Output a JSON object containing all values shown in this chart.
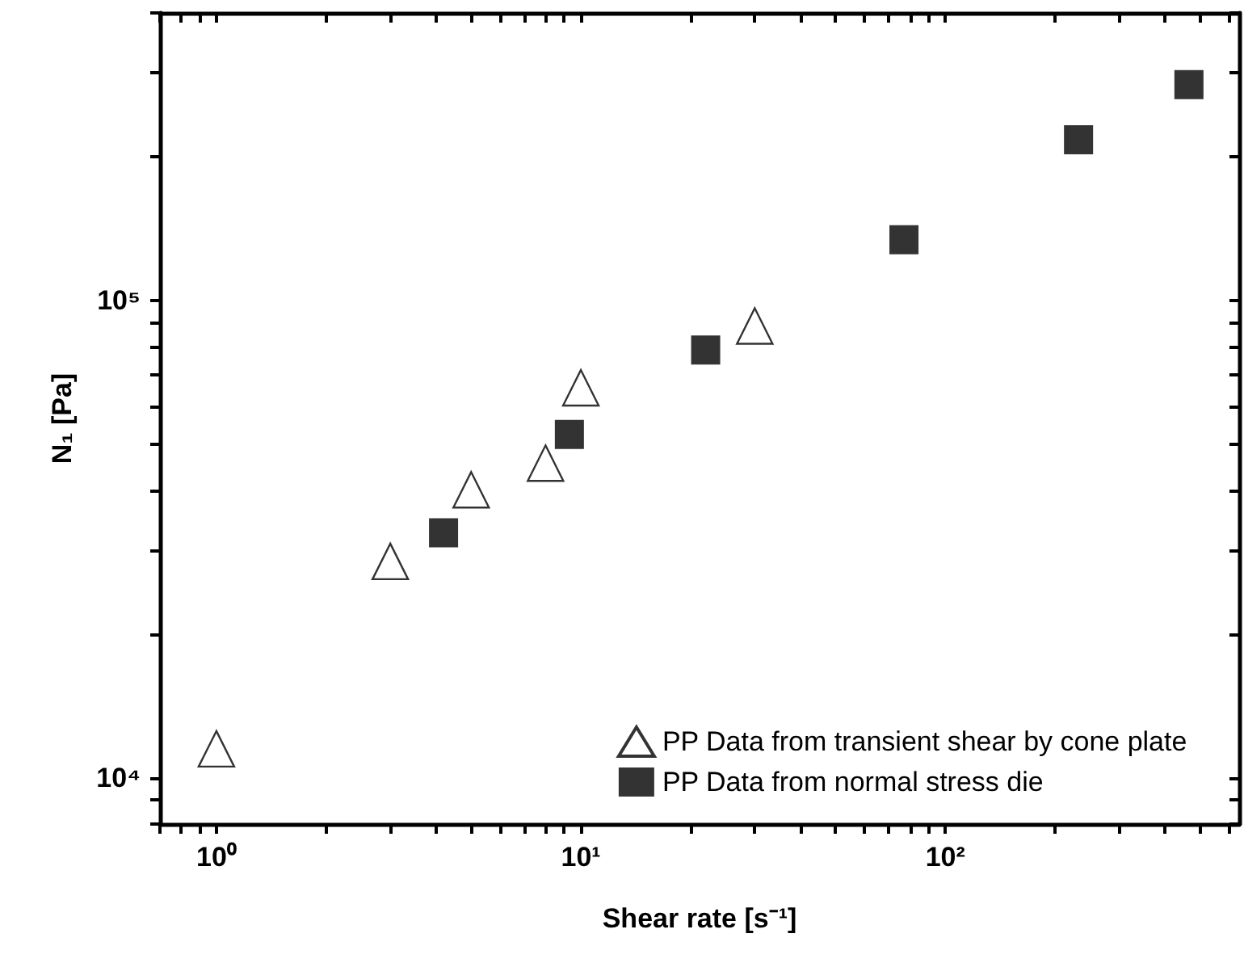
{
  "chart_data": {
    "type": "scatter",
    "xlabel": "Shear rate [s⁻¹]",
    "ylabel": "N₁ [Pa]",
    "log": "xy",
    "grid": false,
    "legend": "bottom right",
    "xlim": [
      0.7,
      640
    ],
    "ylim": [
      8000,
      400000
    ],
    "xticks": [
      {
        "value": 0.7,
        "label": null
      },
      {
        "value": 0.8,
        "label": null
      },
      {
        "value": 0.9,
        "label": null
      },
      {
        "value": 1,
        "label": "10⁰"
      },
      {
        "value": 2,
        "label": null
      },
      {
        "value": 3,
        "label": null
      },
      {
        "value": 4,
        "label": null
      },
      {
        "value": 5,
        "label": null
      },
      {
        "value": 6,
        "label": null
      },
      {
        "value": 7,
        "label": null
      },
      {
        "value": 8,
        "label": null
      },
      {
        "value": 9,
        "label": null
      },
      {
        "value": 10,
        "label": "10¹"
      },
      {
        "value": 20,
        "label": null
      },
      {
        "value": 30,
        "label": null
      },
      {
        "value": 40,
        "label": null
      },
      {
        "value": 50,
        "label": null
      },
      {
        "value": 60,
        "label": null
      },
      {
        "value": 70,
        "label": null
      },
      {
        "value": 80,
        "label": null
      },
      {
        "value": 90,
        "label": null
      },
      {
        "value": 100,
        "label": "10²"
      },
      {
        "value": 200,
        "label": null
      },
      {
        "value": 300,
        "label": null
      },
      {
        "value": 400,
        "label": null
      },
      {
        "value": 500,
        "label": null
      },
      {
        "value": 600,
        "label": null
      }
    ],
    "yticks": [
      {
        "value": 8000,
        "label": null
      },
      {
        "value": 9000,
        "label": null
      },
      {
        "value": 10000,
        "label": "10⁴"
      },
      {
        "value": 20000,
        "label": null
      },
      {
        "value": 30000,
        "label": null
      },
      {
        "value": 40000,
        "label": null
      },
      {
        "value": 50000,
        "label": null
      },
      {
        "value": 60000,
        "label": null
      },
      {
        "value": 70000,
        "label": null
      },
      {
        "value": 80000,
        "label": null
      },
      {
        "value": 90000,
        "label": null
      },
      {
        "value": 100000,
        "label": "10⁵"
      },
      {
        "value": 200000,
        "label": null
      },
      {
        "value": 300000,
        "label": null
      },
      {
        "value": 400000,
        "label": null
      }
    ],
    "series": [
      {
        "name": "PP Data from transient shear by cone plate",
        "color": "#000000",
        "marker": "triangle",
        "x": [
          1,
          3,
          5,
          8,
          10,
          30
        ],
        "values": [
          11500,
          28400,
          40100,
          45600,
          65600,
          88400
        ]
      },
      {
        "name": "PP Data from normal stress die",
        "color": "#000000",
        "marker": "square",
        "x": [
          4.2,
          9.3,
          22,
          77,
          232,
          466
        ],
        "values": [
          32600,
          52400,
          78700,
          134000,
          217000,
          283000
        ]
      }
    ]
  }
}
